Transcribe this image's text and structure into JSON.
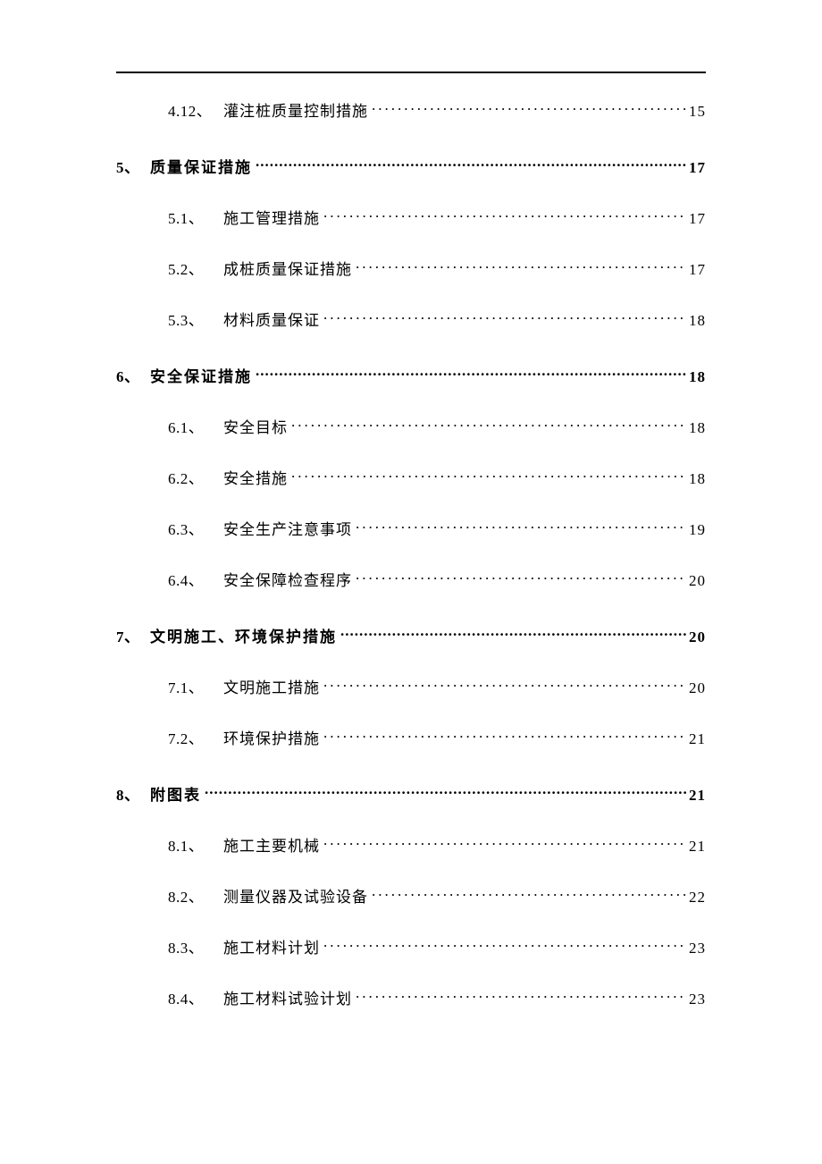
{
  "toc": [
    {
      "level": 2,
      "num": "4.12、",
      "title": "灌注桩质量控制措施",
      "page": "15",
      "first": true
    },
    {
      "level": 1,
      "num": "5、",
      "title": "质量保证措施",
      "page": "17"
    },
    {
      "level": 2,
      "num": "5.1、",
      "title": "施工管理措施",
      "page": "17"
    },
    {
      "level": 2,
      "num": "5.2、",
      "title": "成桩质量保证措施",
      "page": "17"
    },
    {
      "level": 2,
      "num": "5.3、",
      "title": "材料质量保证",
      "page": "18"
    },
    {
      "level": 1,
      "num": "6、",
      "title": "安全保证措施",
      "page": "18"
    },
    {
      "level": 2,
      "num": "6.1、",
      "title": "安全目标",
      "page": "18"
    },
    {
      "level": 2,
      "num": "6.2、",
      "title": "安全措施",
      "page": "18"
    },
    {
      "level": 2,
      "num": "6.3、",
      "title": "安全生产注意事项",
      "page": "19"
    },
    {
      "level": 2,
      "num": "6.4、",
      "title": "安全保障检查程序",
      "page": "20"
    },
    {
      "level": 1,
      "num": "7、",
      "title": "文明施工、环境保护措施",
      "page": "20"
    },
    {
      "level": 2,
      "num": "7.1、",
      "title": "文明施工措施",
      "page": "20"
    },
    {
      "level": 2,
      "num": "7.2、",
      "title": "环境保护措施",
      "page": "21"
    },
    {
      "level": 1,
      "num": "8、",
      "title": "附图表",
      "page": "21"
    },
    {
      "level": 2,
      "num": "8.1、",
      "title": "施工主要机械",
      "page": "21"
    },
    {
      "level": 2,
      "num": "8.2、",
      "title": "测量仪器及试验设备",
      "page": "22"
    },
    {
      "level": 2,
      "num": "8.3、",
      "title": "施工材料计划",
      "page": "23"
    },
    {
      "level": 2,
      "num": "8.4、",
      "title": "施工材料试验计划",
      "page": "23"
    }
  ],
  "leaders": {
    "l1_char": ".",
    "l2_char": "."
  }
}
